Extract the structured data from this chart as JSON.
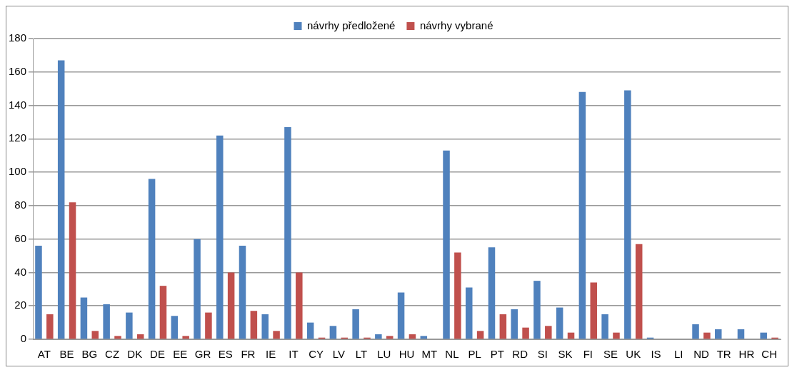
{
  "chart_data": {
    "type": "bar",
    "categories": [
      "AT",
      "BE",
      "BG",
      "CZ",
      "DK",
      "DE",
      "EE",
      "GR",
      "ES",
      "FR",
      "IE",
      "IT",
      "CY",
      "LV",
      "LT",
      "LU",
      "HU",
      "MT",
      "NL",
      "PL",
      "PT",
      "RD",
      "SI",
      "SK",
      "FI",
      "SE",
      "UK",
      "IS",
      "LI",
      "ND",
      "TR",
      "HR",
      "CH"
    ],
    "series": [
      {
        "name": "návrhy předložené",
        "color": "#4f81bd",
        "values": [
          56,
          167,
          25,
          21,
          16,
          96,
          14,
          60,
          122,
          56,
          15,
          127,
          10,
          8,
          18,
          3,
          28,
          2,
          113,
          31,
          55,
          18,
          35,
          19,
          148,
          15,
          149,
          1,
          0,
          9,
          6,
          6,
          4
        ]
      },
      {
        "name": "návrhy vybrané",
        "color": "#c0504d",
        "values": [
          15,
          82,
          5,
          2,
          3,
          32,
          2,
          16,
          40,
          17,
          5,
          40,
          1,
          1,
          1,
          2,
          3,
          0,
          52,
          5,
          15,
          7,
          8,
          4,
          34,
          4,
          57,
          0,
          0,
          4,
          0,
          0,
          1
        ]
      }
    ],
    "ylim": [
      0,
      180
    ],
    "yticks": [
      0,
      20,
      40,
      60,
      80,
      100,
      120,
      140,
      160,
      180
    ],
    "grid": "y",
    "legend": "top"
  }
}
